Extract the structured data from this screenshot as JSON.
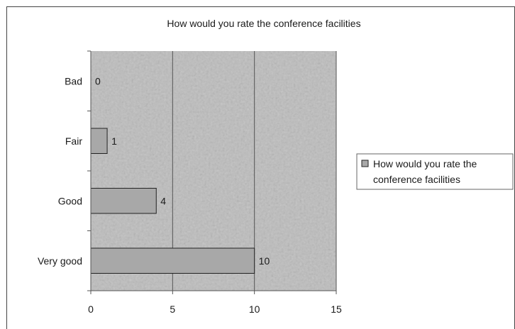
{
  "chart_data": {
    "type": "bar",
    "orientation": "horizontal",
    "title": "How would you rate the conference facilities",
    "categories": [
      "Bad",
      "Fair",
      "Good",
      "Very good"
    ],
    "series": [
      {
        "name": "How would you rate the conference facilities",
        "values": [
          0,
          1,
          4,
          10
        ]
      }
    ],
    "data_labels": [
      "0",
      "1",
      "4",
      "10"
    ],
    "xlim": [
      0,
      15
    ],
    "x_ticks": [
      0,
      5,
      10,
      15
    ],
    "x_tick_labels": [
      "0",
      "5",
      "10",
      "15"
    ],
    "grid": "vertical major gridlines",
    "legend_position": "right",
    "legend_lines": [
      "How would you rate the",
      "conference facilities"
    ],
    "colors": {
      "plot_area": "#bdbdbd",
      "bar_fill": "#a8a8a8",
      "bar_stroke": "#222222",
      "gridline": "#555555",
      "frame": "#444444"
    }
  }
}
